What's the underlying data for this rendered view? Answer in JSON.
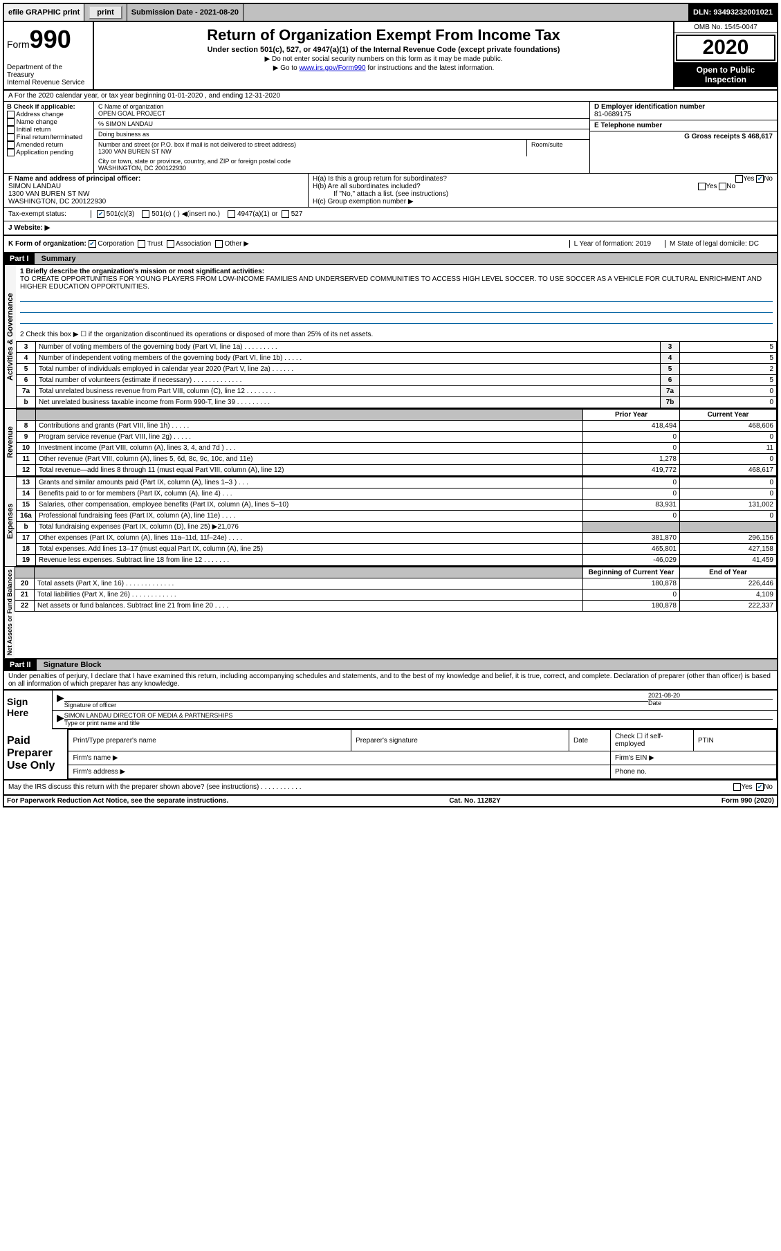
{
  "top_bar": {
    "efile": "efile GRAPHIC print",
    "submission_date": "Submission Date - 2021-08-20",
    "dln": "DLN: 93493232001021"
  },
  "header": {
    "form_label": "Form",
    "form_num": "990",
    "dept": "Department of the Treasury",
    "irs": "Internal Revenue Service",
    "title": "Return of Organization Exempt From Income Tax",
    "subtitle": "Under section 501(c), 527, or 4947(a)(1) of the Internal Revenue Code (except private foundations)",
    "note1": "▶ Do not enter social security numbers on this form as it may be made public.",
    "note2_pre": "▶ Go to ",
    "note2_link": "www.irs.gov/Form990",
    "note2_post": " for instructions and the latest information.",
    "omb": "OMB No. 1545-0047",
    "year": "2020",
    "inspection": "Open to Public Inspection"
  },
  "line_a": "A For the 2020 calendar year, or tax year beginning 01-01-2020   , and ending 12-31-2020",
  "col_b": {
    "label": "B Check if applicable:",
    "opts": [
      "Address change",
      "Name change",
      "Initial return",
      "Final return/terminated",
      "Amended return",
      "Application pending"
    ]
  },
  "col_c": {
    "name_label": "C Name of organization",
    "name": "OPEN GOAL PROJECT",
    "care_of": "% SIMON LANDAU",
    "dba_label": "Doing business as",
    "addr_label": "Number and street (or P.O. box if mail is not delivered to street address)",
    "room_label": "Room/suite",
    "addr": "1300 VAN BUREN ST NW",
    "city_label": "City or town, state or province, country, and ZIP or foreign postal code",
    "city": "WASHINGTON, DC  200122930"
  },
  "col_d": {
    "label": "D Employer identification number",
    "value": "81-0689175"
  },
  "col_e": {
    "label": "E Telephone number",
    "value": ""
  },
  "col_g": {
    "label": "G Gross receipts $ 468,617"
  },
  "col_f": {
    "label": "F  Name and address of principal officer:",
    "name": "SIMON LANDAU",
    "addr1": "1300 VAN BUREN ST NW",
    "addr2": "WASHINGTON, DC  200122930"
  },
  "col_h": {
    "ha": "H(a)  Is this a group return for subordinates?",
    "hb": "H(b)  Are all subordinates included?",
    "hb_note": "If \"No,\" attach a list. (see instructions)",
    "hc": "H(c)  Group exemption number ▶",
    "yes": "Yes",
    "no": "No"
  },
  "tax_status": {
    "label": "Tax-exempt status:",
    "o1": "501(c)(3)",
    "o2": "501(c) (   ) ◀(insert no.)",
    "o3": "4947(a)(1) or",
    "o4": "527"
  },
  "website": {
    "label": "J    Website: ▶"
  },
  "k_row": {
    "k": "K Form of organization:",
    "corp": "Corporation",
    "trust": "Trust",
    "assoc": "Association",
    "other": "Other ▶",
    "l": "L Year of formation: 2019",
    "m": "M State of legal domicile: DC"
  },
  "part1": {
    "header": "Part I",
    "title": "Summary",
    "line1_label": "1  Briefly describe the organization's mission or most significant activities:",
    "line1_text": "TO CREATE OPPORTUNITIES FOR YOUNG PLAYERS FROM LOW-INCOME FAMILIES AND UNDERSERVED COMMUNITIES TO ACCESS HIGH LEVEL SOCCER. TO USE SOCCER AS A VEHICLE FOR CULTURAL ENRICHMENT AND HIGHER EDUCATION OPPORTUNITIES.",
    "line2": "2    Check this box ▶ ☐  if the organization discontinued its operations or disposed of more than 25% of its net assets."
  },
  "gov_rows": [
    {
      "n": "3",
      "desc": "Number of voting members of the governing body (Part VI, line 1a)  .    .    .    .    .    .    .    .    .",
      "box": "3",
      "val": "5"
    },
    {
      "n": "4",
      "desc": "Number of independent voting members of the governing body (Part VI, line 1b)  .    .    .    .    .",
      "box": "4",
      "val": "5"
    },
    {
      "n": "5",
      "desc": "Total number of individuals employed in calendar year 2020 (Part V, line 2a)  .    .    .    .    .    .",
      "box": "5",
      "val": "2"
    },
    {
      "n": "6",
      "desc": "Total number of volunteers (estimate if necessary)   .    .    .    .    .    .    .    .    .    .    .    .    .",
      "box": "6",
      "val": "5"
    },
    {
      "n": "7a",
      "desc": "Total unrelated business revenue from Part VIII, column (C), line 12   .    .    .    .    .    .    .    .",
      "box": "7a",
      "val": "0"
    },
    {
      "n": "b",
      "desc": "Net unrelated business taxable income from Form 990-T, line 39   .    .    .    .    .    .    .    .    .",
      "box": "7b",
      "val": "0"
    }
  ],
  "rev_header": {
    "prior": "Prior Year",
    "curr": "Current Year"
  },
  "rev_rows": [
    {
      "n": "8",
      "desc": "Contributions and grants (Part VIII, line 1h)   .     .     .     .     .",
      "p": "418,494",
      "c": "468,606"
    },
    {
      "n": "9",
      "desc": "Program service revenue (Part VIII, line 2g)   .     .     .     .     .",
      "p": "0",
      "c": "0"
    },
    {
      "n": "10",
      "desc": "Investment income (Part VIII, column (A), lines 3, 4, and 7d )    .     .     .",
      "p": "0",
      "c": "11"
    },
    {
      "n": "11",
      "desc": "Other revenue (Part VIII, column (A), lines 5, 6d, 8c, 9c, 10c, and 11e)",
      "p": "1,278",
      "c": "0"
    },
    {
      "n": "12",
      "desc": "Total revenue—add lines 8 through 11 (must equal Part VIII, column (A), line 12)",
      "p": "419,772",
      "c": "468,617"
    }
  ],
  "exp_rows": [
    {
      "n": "13",
      "desc": "Grants and similar amounts paid (Part IX, column (A), lines 1–3 )   .     .     .",
      "p": "0",
      "c": "0"
    },
    {
      "n": "14",
      "desc": "Benefits paid to or for members (Part IX, column (A), line 4)   .     .     .",
      "p": "0",
      "c": "0"
    },
    {
      "n": "15",
      "desc": "Salaries, other compensation, employee benefits (Part IX, column (A), lines 5–10)",
      "p": "83,931",
      "c": "131,002"
    },
    {
      "n": "16a",
      "desc": "Professional fundraising fees (Part IX, column (A), line 11e)   .     .     .     .",
      "p": "0",
      "c": "0"
    },
    {
      "n": "b",
      "desc": "Total fundraising expenses (Part IX, column (D), line 25) ▶21,076",
      "p": "",
      "c": "",
      "gray": true
    },
    {
      "n": "17",
      "desc": "Other expenses (Part IX, column (A), lines 11a–11d, 11f–24e)   .     .     .     .",
      "p": "381,870",
      "c": "296,156"
    },
    {
      "n": "18",
      "desc": "Total expenses. Add lines 13–17 (must equal Part IX, column (A), line 25)",
      "p": "465,801",
      "c": "427,158"
    },
    {
      "n": "19",
      "desc": "Revenue less expenses. Subtract line 18 from line 12 .    .    .    .    .    .    .",
      "p": "-46,029",
      "c": "41,459"
    }
  ],
  "na_header": {
    "beg": "Beginning of Current Year",
    "end": "End of Year"
  },
  "na_rows": [
    {
      "n": "20",
      "desc": "Total assets (Part X, line 16)  .    .    .    .    .    .    .    .    .    .    .    .    .",
      "p": "180,878",
      "c": "226,446"
    },
    {
      "n": "21",
      "desc": "Total liabilities (Part X, line 26)  .    .    .    .    .    .    .    .    .    .    .    .",
      "p": "0",
      "c": "4,109"
    },
    {
      "n": "22",
      "desc": "Net assets or fund balances. Subtract line 21 from line 20  .    .    .    .",
      "p": "180,878",
      "c": "222,337"
    }
  ],
  "part2": {
    "header": "Part II",
    "title": "Signature Block"
  },
  "sig": {
    "perjury": "Under penalties of perjury, I declare that I have examined this return, including accompanying schedules and statements, and to the best of my knowledge and belief, it is true, correct, and complete. Declaration of preparer (other than officer) is based on all information of which preparer has any knowledge.",
    "sign_here": "Sign Here",
    "sig_officer": "Signature of officer",
    "date_label": "Date",
    "date": "2021-08-20",
    "name_title": "SIMON LANDAU  DIRECTOR OF MEDIA & PARTNERSHIPS",
    "type_name": "Type or print name and title"
  },
  "paid": {
    "label": "Paid Preparer Use Only",
    "h1": "Print/Type preparer's name",
    "h2": "Preparer's signature",
    "h3": "Date",
    "h4_pre": "Check ☐ if self-employed",
    "h5": "PTIN",
    "firm_name": "Firm's name    ▶",
    "firm_ein": "Firm's EIN ▶",
    "firm_addr": "Firm's address ▶",
    "phone": "Phone no."
  },
  "footer": {
    "discuss": "May the IRS discuss this return with the preparer shown above? (see instructions)    .    .    .    .    .    .    .    .    .    .    .",
    "yes": "Yes",
    "no": "No",
    "paperwork": "For Paperwork Reduction Act Notice, see the separate instructions.",
    "cat": "Cat. No. 11282Y",
    "form": "Form 990 (2020)"
  },
  "vert": {
    "gov": "Activities & Governance",
    "rev": "Revenue",
    "exp": "Expenses",
    "na": "Net Assets or Fund Balances"
  }
}
